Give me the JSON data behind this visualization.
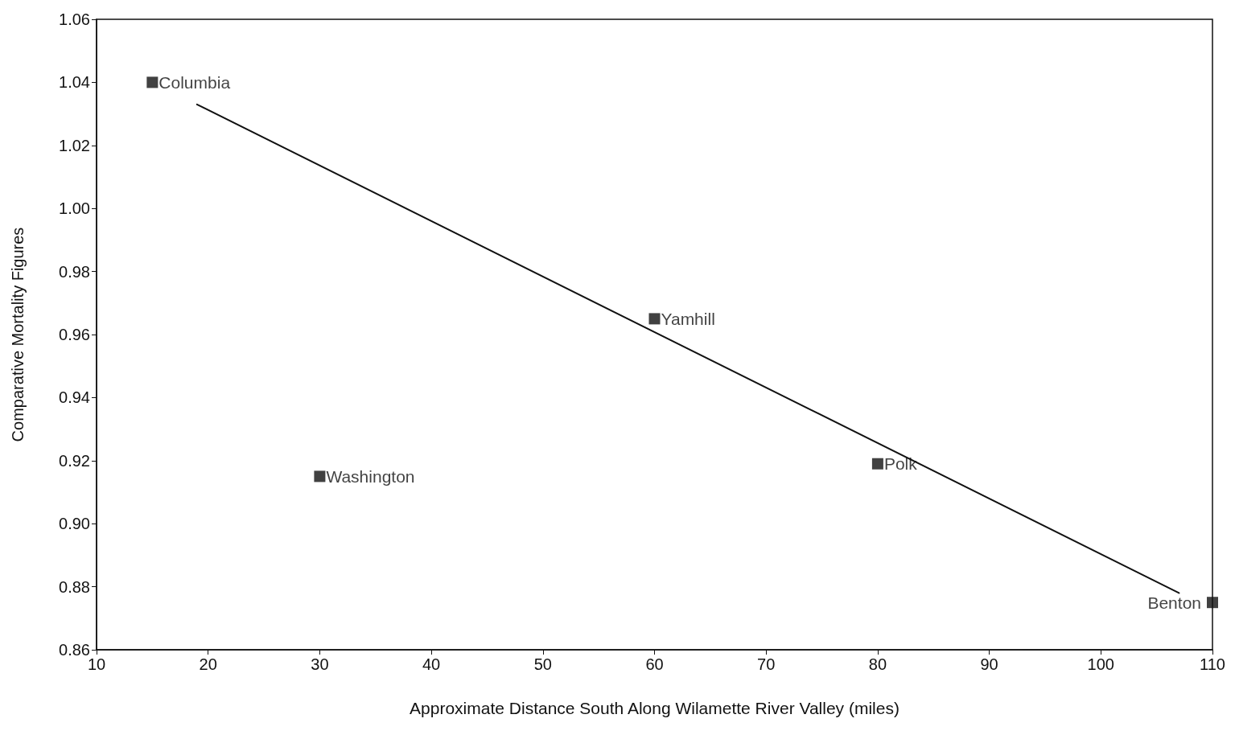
{
  "chart_data": {
    "type": "scatter",
    "xlabel": "Approximate Distance South Along Wilamette River Valley (miles)",
    "ylabel": "Comparative Mortality Figures",
    "xlim": [
      10,
      110
    ],
    "xticks": [
      10,
      20,
      30,
      40,
      50,
      60,
      70,
      80,
      90,
      100,
      110
    ],
    "ylim": [
      0.86,
      1.06
    ],
    "yticks": [
      0.86,
      0.88,
      {
        "value": 0.9,
        "label": "0.90"
      },
      0.92,
      0.94,
      0.96,
      0.98,
      {
        "value": 1,
        "label": "1.00"
      },
      1.02,
      1.04,
      1.06
    ],
    "grid": false,
    "marker": "square",
    "series": [
      {
        "color": "#111111",
        "x": [
          15,
          30,
          60,
          80,
          110
        ],
        "values": [
          1.04,
          0.915,
          0.965,
          0.919,
          0.875
        ]
      },
      {
        "type": "line",
        "color": "#111111",
        "line_style": "solid",
        "marker": "none",
        "x": [
          19,
          107
        ],
        "values": [
          1.033,
          0.878
        ]
      }
    ],
    "annotations": [
      {
        "text": "Columbia",
        "x": 15,
        "y": 1.04
      },
      {
        "text": "Washington",
        "x": 30,
        "y": 0.915
      },
      {
        "text": "Yamhill",
        "x": 60,
        "y": 0.965
      },
      {
        "text": "Polk",
        "x": 80,
        "y": 0.919
      },
      {
        "text": "Benton",
        "x": 110,
        "y": 0.875
      }
    ]
  }
}
